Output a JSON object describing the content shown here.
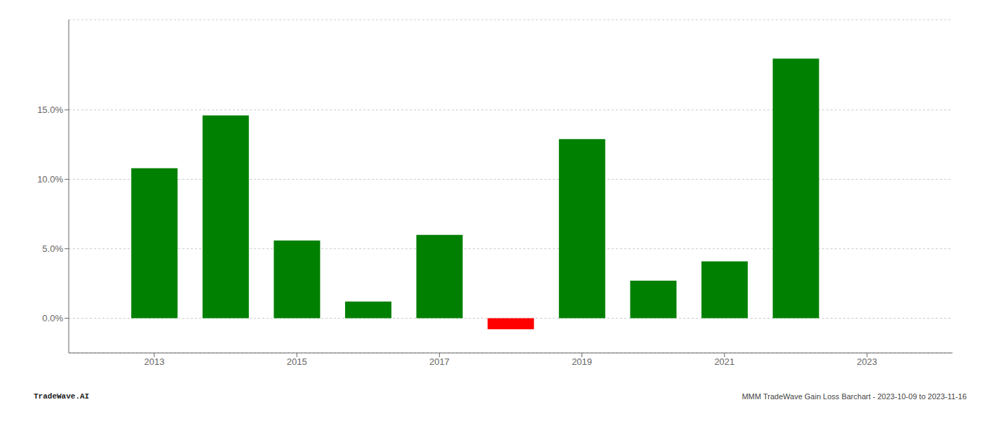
{
  "chart_data": {
    "type": "bar",
    "x": [
      2013,
      2014,
      2015,
      2016,
      2017,
      2018,
      2019,
      2020,
      2021,
      2022
    ],
    "values": [
      0.108,
      0.146,
      0.056,
      0.012,
      0.06,
      -0.008,
      0.129,
      0.027,
      0.041,
      0.187
    ],
    "colors": [
      "#008000",
      "#008000",
      "#008000",
      "#008000",
      "#008000",
      "#ff0000",
      "#008000",
      "#008000",
      "#008000",
      "#008000"
    ],
    "xlim": [
      2011.8,
      2024.2
    ],
    "xticks": [
      2013,
      2015,
      2017,
      2019,
      2021,
      2023
    ],
    "ylim": [
      -0.025,
      0.215
    ],
    "yticks": [
      {
        "value": 0.0,
        "label": "0.0%"
      },
      {
        "value": 0.05,
        "label": "5.0%"
      },
      {
        "value": 0.1,
        "label": "10.0%"
      },
      {
        "value": 0.15,
        "label": "15.0%"
      }
    ],
    "grid": "y",
    "annotations": [
      "TradeWave.AI",
      "MMM TradeWave Gain Loss Barchart - 2023-10-09 to 2023-11-16"
    ]
  }
}
